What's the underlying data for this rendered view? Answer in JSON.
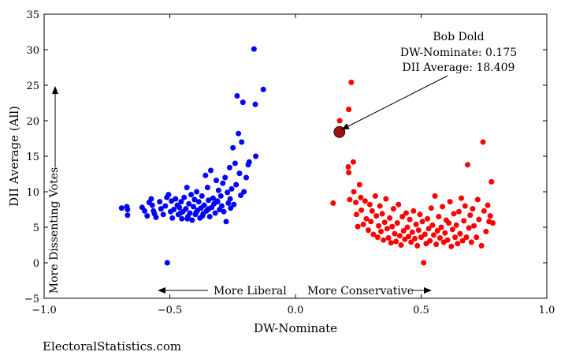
{
  "chart_data": {
    "type": "scatter",
    "title": "",
    "xlabel": "DW-Nominate",
    "ylabel": "DII Average (All)",
    "xlim": [
      -1.0,
      1.0
    ],
    "ylim": [
      -5,
      35
    ],
    "xticks": [
      "−1.0",
      "−0.5",
      "0.0",
      "0.5",
      "1.0"
    ],
    "xtick_values": [
      -1.0,
      -0.5,
      0.0,
      0.5,
      1.0
    ],
    "yticks": [
      "−5",
      "0",
      "5",
      "10",
      "15",
      "20",
      "25",
      "30",
      "35"
    ],
    "ytick_values": [
      -5,
      0,
      5,
      10,
      15,
      20,
      25,
      30,
      35
    ],
    "grid": false,
    "series": [
      {
        "color": "#0000ff",
        "points": [
          [
            -0.692,
            7.7
          ],
          [
            -0.671,
            7.9
          ],
          [
            -0.668,
            7.5
          ],
          [
            -0.668,
            6.7
          ],
          [
            -0.61,
            7.8
          ],
          [
            -0.6,
            7.3
          ],
          [
            -0.59,
            6.6
          ],
          [
            -0.582,
            8.5
          ],
          [
            -0.574,
            9.0
          ],
          [
            -0.57,
            8.1
          ],
          [
            -0.565,
            7.3
          ],
          [
            -0.561,
            6.9
          ],
          [
            -0.555,
            6.4
          ],
          [
            -0.54,
            8.6
          ],
          [
            -0.535,
            7.6
          ],
          [
            -0.526,
            6.8
          ],
          [
            -0.518,
            8.0
          ],
          [
            -0.512,
            9.2
          ],
          [
            -0.505,
            9.6
          ],
          [
            -0.497,
            7.2
          ],
          [
            -0.493,
            8.7
          ],
          [
            -0.49,
            6.3
          ],
          [
            -0.484,
            7.5
          ],
          [
            -0.477,
            9.0
          ],
          [
            -0.47,
            8.1
          ],
          [
            -0.466,
            6.8
          ],
          [
            -0.462,
            7.8
          ],
          [
            -0.455,
            8.6
          ],
          [
            -0.452,
            6.2
          ],
          [
            -0.448,
            7.2
          ],
          [
            -0.443,
            9.2
          ],
          [
            -0.436,
            7.6
          ],
          [
            -0.432,
            10.6
          ],
          [
            -0.428,
            6.5
          ],
          [
            -0.424,
            8.3
          ],
          [
            -0.42,
            7.0
          ],
          [
            -0.415,
            9.6
          ],
          [
            -0.411,
            6.0
          ],
          [
            -0.406,
            7.9
          ],
          [
            -0.402,
            8.9
          ],
          [
            -0.398,
            6.8
          ],
          [
            -0.393,
            10.0
          ],
          [
            -0.389,
            7.4
          ],
          [
            -0.385,
            8.6
          ],
          [
            -0.38,
            6.3
          ],
          [
            -0.376,
            7.7
          ],
          [
            -0.372,
            9.4
          ],
          [
            -0.367,
            6.9
          ],
          [
            -0.363,
            8.1
          ],
          [
            -0.358,
            12.3
          ],
          [
            -0.354,
            7.3
          ],
          [
            -0.35,
            10.6
          ],
          [
            -0.346,
            8.8
          ],
          [
            -0.341,
            6.5
          ],
          [
            -0.337,
            13.0
          ],
          [
            -0.333,
            7.8
          ],
          [
            -0.328,
            9.1
          ],
          [
            -0.324,
            8.3
          ],
          [
            -0.319,
            7.0
          ],
          [
            -0.315,
            11.6
          ],
          [
            -0.311,
            8.7
          ],
          [
            -0.306,
            10.2
          ],
          [
            -0.302,
            7.5
          ],
          [
            -0.297,
            9.4
          ],
          [
            -0.293,
            8.0
          ],
          [
            -0.289,
            11.2
          ],
          [
            -0.285,
            7.2
          ],
          [
            -0.28,
            12.0
          ],
          [
            -0.276,
            5.8
          ],
          [
            -0.271,
            9.9
          ],
          [
            -0.267,
            8.4
          ],
          [
            -0.262,
            13.4
          ],
          [
            -0.258,
            7.7
          ],
          [
            -0.254,
            10.4
          ],
          [
            -0.249,
            16.2
          ],
          [
            -0.245,
            8.2
          ],
          [
            -0.24,
            14.0
          ],
          [
            -0.236,
            11.0
          ],
          [
            -0.232,
            23.5
          ],
          [
            -0.227,
            18.2
          ],
          [
            -0.223,
            12.6
          ],
          [
            -0.218,
            9.5
          ],
          [
            -0.214,
            17.0
          ],
          [
            -0.209,
            22.6
          ],
          [
            -0.205,
            10.0
          ],
          [
            -0.196,
            12.0
          ],
          [
            -0.188,
            13.8
          ],
          [
            -0.184,
            14.2
          ],
          [
            -0.165,
            30.1
          ],
          [
            -0.16,
            22.3
          ],
          [
            -0.158,
            15.0
          ],
          [
            -0.128,
            24.4
          ],
          [
            -0.51,
            0.0
          ],
          [
            -0.458,
            7.0
          ],
          [
            -0.43,
            6.2
          ],
          [
            -0.395,
            7.1
          ],
          [
            -0.37,
            6.6
          ],
          [
            -0.345,
            7.6
          ],
          [
            -0.31,
            8.6
          ],
          [
            -0.26,
            9.0
          ]
        ]
      },
      {
        "color": "#ff0000",
        "points": [
          [
            0.15,
            8.4
          ],
          [
            0.176,
            20.0
          ],
          [
            0.212,
            21.6
          ],
          [
            0.21,
            13.5
          ],
          [
            0.212,
            12.7
          ],
          [
            0.216,
            8.9
          ],
          [
            0.222,
            25.4
          ],
          [
            0.23,
            14.2
          ],
          [
            0.232,
            10.0
          ],
          [
            0.24,
            8.5
          ],
          [
            0.243,
            6.8
          ],
          [
            0.248,
            5.1
          ],
          [
            0.255,
            11.0
          ],
          [
            0.26,
            9.2
          ],
          [
            0.262,
            7.4
          ],
          [
            0.27,
            5.4
          ],
          [
            0.277,
            8.7
          ],
          [
            0.282,
            6.2
          ],
          [
            0.29,
            4.6
          ],
          [
            0.296,
            8.2
          ],
          [
            0.3,
            5.8
          ],
          [
            0.305,
            7.3
          ],
          [
            0.31,
            4.0
          ],
          [
            0.318,
            9.4
          ],
          [
            0.322,
            6.6
          ],
          [
            0.327,
            3.6
          ],
          [
            0.331,
            5.2
          ],
          [
            0.336,
            8.0
          ],
          [
            0.34,
            4.4
          ],
          [
            0.345,
            6.9
          ],
          [
            0.35,
            3.2
          ],
          [
            0.355,
            5.7
          ],
          [
            0.36,
            9.0
          ],
          [
            0.365,
            4.8
          ],
          [
            0.37,
            3.5
          ],
          [
            0.375,
            6.3
          ],
          [
            0.38,
            2.8
          ],
          [
            0.385,
            5.1
          ],
          [
            0.39,
            7.6
          ],
          [
            0.395,
            4.1
          ],
          [
            0.4,
            3.0
          ],
          [
            0.405,
            5.6
          ],
          [
            0.41,
            8.2
          ],
          [
            0.415,
            3.8
          ],
          [
            0.42,
            2.5
          ],
          [
            0.425,
            6.5
          ],
          [
            0.43,
            4.5
          ],
          [
            0.435,
            3.3
          ],
          [
            0.44,
            7.0
          ],
          [
            0.445,
            5.0
          ],
          [
            0.45,
            3.7
          ],
          [
            0.455,
            6.1
          ],
          [
            0.46,
            2.9
          ],
          [
            0.465,
            4.3
          ],
          [
            0.47,
            7.3
          ],
          [
            0.475,
            3.4
          ],
          [
            0.48,
            5.4
          ],
          [
            0.485,
            2.4
          ],
          [
            0.49,
            4.6
          ],
          [
            0.495,
            6.8
          ],
          [
            0.5,
            3.6
          ],
          [
            0.505,
            5.8
          ],
          [
            0.51,
            0.0
          ],
          [
            0.515,
            4.0
          ],
          [
            0.52,
            2.7
          ],
          [
            0.525,
            6.2
          ],
          [
            0.53,
            4.8
          ],
          [
            0.535,
            3.1
          ],
          [
            0.54,
            7.7
          ],
          [
            0.545,
            5.3
          ],
          [
            0.55,
            3.9
          ],
          [
            0.555,
            9.4
          ],
          [
            0.56,
            2.6
          ],
          [
            0.565,
            4.5
          ],
          [
            0.57,
            6.5
          ],
          [
            0.575,
            3.5
          ],
          [
            0.58,
            5.0
          ],
          [
            0.585,
            7.9
          ],
          [
            0.59,
            2.9
          ],
          [
            0.595,
            4.2
          ],
          [
            0.6,
            6.0
          ],
          [
            0.605,
            3.2
          ],
          [
            0.61,
            5.6
          ],
          [
            0.615,
            8.6
          ],
          [
            0.62,
            2.3
          ],
          [
            0.625,
            4.7
          ],
          [
            0.63,
            6.9
          ],
          [
            0.635,
            3.6
          ],
          [
            0.64,
            5.3
          ],
          [
            0.645,
            2.7
          ],
          [
            0.65,
            7.2
          ],
          [
            0.655,
            4.1
          ],
          [
            0.66,
            9.1
          ],
          [
            0.665,
            3.1
          ],
          [
            0.67,
            5.9
          ],
          [
            0.675,
            8.0
          ],
          [
            0.68,
            3.6
          ],
          [
            0.685,
            13.8
          ],
          [
            0.69,
            4.9
          ],
          [
            0.695,
            6.7
          ],
          [
            0.7,
            2.9
          ],
          [
            0.705,
            7.6
          ],
          [
            0.71,
            5.2
          ],
          [
            0.72,
            3.6
          ],
          [
            0.725,
            8.9
          ],
          [
            0.73,
            6.1
          ],
          [
            0.74,
            2.4
          ],
          [
            0.746,
            17.0
          ],
          [
            0.75,
            7.3
          ],
          [
            0.758,
            4.4
          ],
          [
            0.765,
            8.1
          ],
          [
            0.77,
            5.8
          ],
          [
            0.775,
            6.6
          ],
          [
            0.78,
            11.4
          ],
          [
            0.785,
            5.6
          ]
        ]
      },
      {
        "color": "#a0100f",
        "points": [
          [
            0.175,
            18.409
          ]
        ]
      }
    ],
    "annotations": {
      "highlight_lines": [
        "Bob Dold",
        "DW-Nominate: 0.175",
        "DII Average: 18.409"
      ],
      "more_liberal": "More Liberal",
      "more_conservative": "More Conservative",
      "more_dissenting": "More Dissenting Votes"
    }
  },
  "credit": "ElectoralStatistics.com"
}
